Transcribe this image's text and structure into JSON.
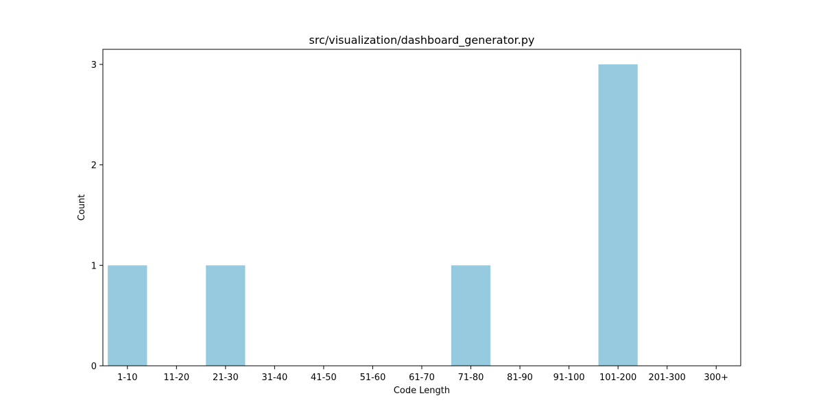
{
  "chart_data": {
    "type": "bar",
    "title": "src/visualization/dashboard_generator.py",
    "xlabel": "Code Length",
    "ylabel": "Count",
    "categories": [
      "1-10",
      "11-20",
      "21-30",
      "31-40",
      "41-50",
      "51-60",
      "61-70",
      "71-80",
      "81-90",
      "91-100",
      "101-200",
      "201-300",
      "300+"
    ],
    "values": [
      1,
      0,
      1,
      0,
      0,
      0,
      0,
      1,
      0,
      0,
      3,
      0,
      0
    ],
    "ylim": [
      0,
      3.15
    ],
    "yticks": [
      0,
      1,
      2,
      3
    ],
    "bar_color": "#96cadf",
    "grid": false,
    "legend": "none"
  }
}
